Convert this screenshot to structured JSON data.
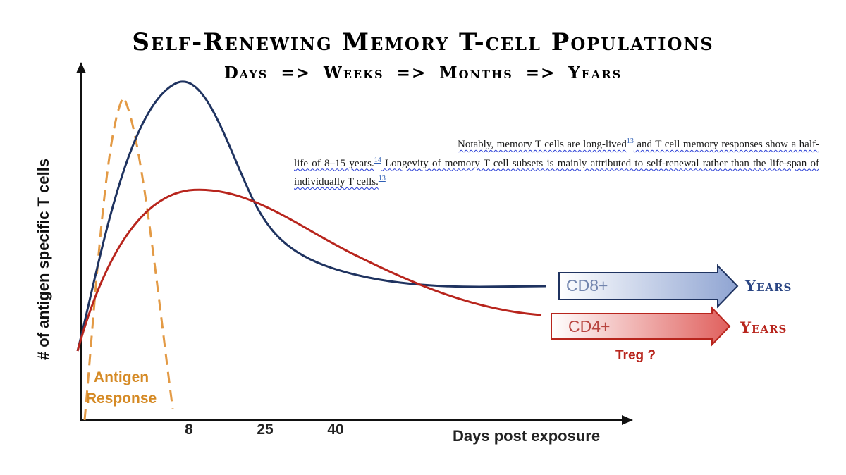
{
  "title": "Self-Renewing Memory T-cell Populations",
  "subtitle": "Days => Weeks => Months => Years",
  "y_axis_label": "# of antigen specific T cells",
  "x_axis_label": "Days post exposure",
  "x_ticks": [
    "8",
    "25",
    "40"
  ],
  "antigen_label": {
    "line1": "Antigen",
    "line2": "Response"
  },
  "quote": {
    "s1a": "Notably, memory T cells are long-lived",
    "ref1": "13",
    "s1b": " and T cell memory responses show a half-life of 8–15 years.",
    "ref2": "14",
    "s2": " Longevity of memory T cell subsets is mainly attributed to self-renewal rather than the life-span of individually T cells.",
    "ref3": "13"
  },
  "cd8": {
    "label": "CD8+",
    "outcome": "Years"
  },
  "cd4": {
    "label": "CD4+",
    "outcome": "Years",
    "note": "Treg ?"
  },
  "colors": {
    "antigen": "#e39a45",
    "cd8": "#1f3360",
    "cd4": "#b8251d",
    "cd8_arrow_fill": "#8fa4d2",
    "cd4_arrow_fill": "#e0605d"
  }
}
